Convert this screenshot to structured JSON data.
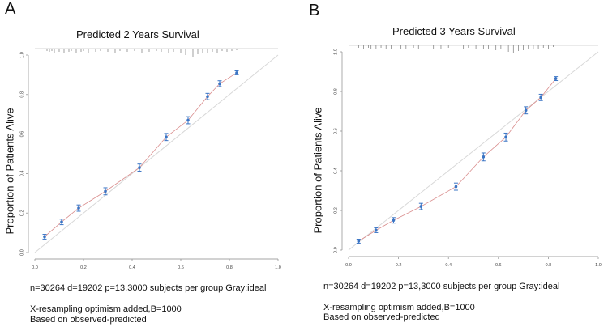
{
  "colors": {
    "ideal": "#d8d8d8",
    "apparent": "#d98c8c",
    "points": "#3a74c4",
    "axis": "#888888"
  },
  "chart_data": [
    {
      "panel": "A",
      "type": "line",
      "title": "Predicted 2 Years Survival",
      "xlabel": "",
      "ylabel": "Proportion of Patients Alive",
      "xlim": [
        0,
        1
      ],
      "ylim": [
        0,
        1
      ],
      "xticks": [
        "0.0",
        "0.2",
        "0.4",
        "0.6",
        "0.8",
        "1.0"
      ],
      "yticks": [
        "0.0",
        "0.2",
        "0.4",
        "0.6",
        "0.8",
        "1.0"
      ],
      "ideal_line": true,
      "series": [
        {
          "name": "observed",
          "x": [
            0.04,
            0.11,
            0.18,
            0.29,
            0.43,
            0.54,
            0.63,
            0.71,
            0.76,
            0.83
          ],
          "values": [
            0.08,
            0.155,
            0.225,
            0.31,
            0.43,
            0.585,
            0.67,
            0.79,
            0.855,
            0.91
          ],
          "err": [
            0.012,
            0.014,
            0.016,
            0.018,
            0.018,
            0.018,
            0.018,
            0.016,
            0.015,
            0.01
          ]
        }
      ],
      "rug": [
        0.05,
        0.06,
        0.07,
        0.08,
        0.1,
        0.12,
        0.14,
        0.15,
        0.17,
        0.19,
        0.2,
        0.22,
        0.25,
        0.27,
        0.3,
        0.33,
        0.35,
        0.38,
        0.41,
        0.44,
        0.47,
        0.5,
        0.52,
        0.55,
        0.57,
        0.6,
        0.62,
        0.65,
        0.67,
        0.69,
        0.71,
        0.73,
        0.75,
        0.77,
        0.79,
        0.81,
        0.83
      ],
      "rug_heights": [
        3,
        4,
        3,
        5,
        4,
        6,
        4,
        3,
        5,
        4,
        3,
        5,
        4,
        3,
        4,
        5,
        3,
        4,
        3,
        5,
        4,
        3,
        4,
        6,
        4,
        5,
        8,
        10,
        7,
        5,
        6,
        4,
        5,
        3,
        4,
        3,
        2
      ],
      "footer": [
        "n=30264 d=19202 p=13,3000 subjects per group Gray:ideal",
        "X-resampling optimism added,B=1000",
        "Based on observed-predicted"
      ]
    },
    {
      "panel": "B",
      "type": "line",
      "title": "Predicted 3 Years Survival",
      "xlabel": "",
      "ylabel": "Proportion of Patients Alive",
      "xlim": [
        0,
        1
      ],
      "ylim": [
        0,
        1
      ],
      "xticks": [
        "0.0",
        "0.2",
        "0.4",
        "0.6",
        "0.8",
        "1.0"
      ],
      "yticks": [
        "0.0",
        "0.2",
        "0.4",
        "0.6",
        "0.8",
        "1.0"
      ],
      "ideal_line": true,
      "series": [
        {
          "name": "observed",
          "x": [
            0.04,
            0.11,
            0.18,
            0.29,
            0.43,
            0.54,
            0.63,
            0.71,
            0.77,
            0.83
          ],
          "values": [
            0.045,
            0.1,
            0.15,
            0.22,
            0.32,
            0.47,
            0.57,
            0.705,
            0.77,
            0.865
          ],
          "err": [
            0.01,
            0.012,
            0.014,
            0.016,
            0.018,
            0.02,
            0.02,
            0.018,
            0.016,
            0.01
          ]
        }
      ],
      "rug": [
        0.04,
        0.06,
        0.08,
        0.09,
        0.11,
        0.13,
        0.15,
        0.17,
        0.19,
        0.21,
        0.23,
        0.26,
        0.28,
        0.31,
        0.34,
        0.37,
        0.4,
        0.43,
        0.46,
        0.48,
        0.51,
        0.54,
        0.56,
        0.59,
        0.61,
        0.64,
        0.66,
        0.68,
        0.7,
        0.72,
        0.74,
        0.76,
        0.78,
        0.8,
        0.82
      ],
      "rug_heights": [
        3,
        4,
        3,
        5,
        4,
        3,
        5,
        4,
        3,
        4,
        5,
        3,
        4,
        3,
        5,
        4,
        3,
        4,
        5,
        3,
        4,
        5,
        4,
        6,
        5,
        8,
        10,
        7,
        6,
        5,
        4,
        5,
        3,
        4,
        2
      ],
      "footer": [
        "n=30264 d=19202 p=13,3000 subjects per group Gray:ideal",
        "X-resampling optimism added,B=1000",
        "Based on observed-predicted"
      ]
    }
  ]
}
